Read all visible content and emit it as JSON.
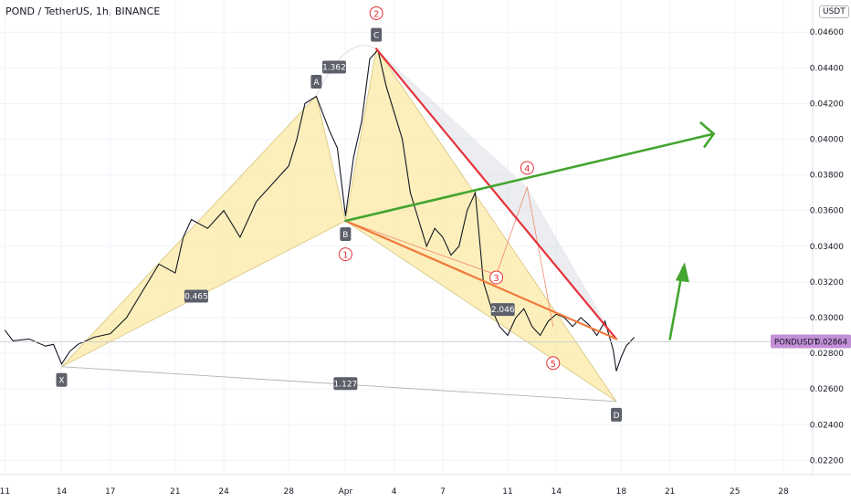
{
  "title": "POND / TetherUS, 1h, BINANCE",
  "unit": "USDT",
  "chart_data": {
    "type": "line",
    "symbol": "PONDUSDT",
    "last_price": "0.02864",
    "y_ticks": [
      "0.04600",
      "0.04400",
      "0.04200",
      "0.04000",
      "0.03800",
      "0.03600",
      "0.03400",
      "0.03200",
      "0.03000",
      "0.02800",
      "0.02600",
      "0.02400",
      "0.02200"
    ],
    "x_ticks": [
      "11",
      "14",
      "17",
      "21",
      "24",
      "28",
      "Apr",
      "4",
      "7",
      "11",
      "14",
      "18",
      "21",
      "25",
      "28"
    ],
    "ylim": [
      0.0212,
      0.0478
    ],
    "price_series": {
      "x": [
        10.5,
        11,
        12,
        13,
        13.5,
        14,
        14.5,
        15,
        16,
        17,
        18,
        19,
        20,
        21,
        21.5,
        22,
        23,
        24,
        25,
        26,
        27,
        28,
        28.5,
        29,
        29.7,
        30.5,
        31,
        31.5,
        32,
        32.5,
        33,
        33.5,
        34,
        34.5,
        35,
        35.5,
        36,
        36.5,
        37,
        37.5,
        38,
        38.5,
        39,
        39.5,
        40,
        40.5,
        41,
        41.5,
        42,
        42.5,
        43,
        43.5,
        44,
        44.5,
        45,
        45.5,
        46,
        46.5,
        47,
        47.5,
        48,
        48.2,
        48.5,
        48.8,
        49,
        49.3
      ],
      "y": [
        0.0293,
        0.0287,
        0.0288,
        0.0284,
        0.0285,
        0.0274,
        0.0281,
        0.0285,
        0.0289,
        0.0291,
        0.03,
        0.0315,
        0.033,
        0.0325,
        0.0345,
        0.0355,
        0.035,
        0.036,
        0.0345,
        0.0365,
        0.0375,
        0.0385,
        0.04,
        0.042,
        0.0424,
        0.0405,
        0.0395,
        0.0357,
        0.039,
        0.041,
        0.0445,
        0.045,
        0.043,
        0.0415,
        0.04,
        0.037,
        0.0355,
        0.034,
        0.035,
        0.0345,
        0.0335,
        0.034,
        0.036,
        0.037,
        0.032,
        0.0305,
        0.0295,
        0.029,
        0.03,
        0.0305,
        0.0295,
        0.029,
        0.0298,
        0.0302,
        0.03,
        0.0295,
        0.03,
        0.0296,
        0.029,
        0.0298,
        0.0282,
        0.027,
        0.0278,
        0.0284,
        0.0286,
        0.0289
      ]
    },
    "harmonic_points": [
      {
        "label": "X",
        "x": 14,
        "y": 0.02725
      },
      {
        "label": "A",
        "x": 29.7,
        "y": 0.04243
      },
      {
        "label": "B",
        "x": 31.5,
        "y": 0.03542
      },
      {
        "label": "C",
        "x": 33.4,
        "y": 0.04506
      },
      {
        "label": "D",
        "x": 48.2,
        "y": 0.0253
      }
    ],
    "ratios": [
      {
        "text": "0.465",
        "x": 22.3,
        "y": 0.0312
      },
      {
        "text": "1.362",
        "x": 30.8,
        "y": 0.04404
      },
      {
        "text": "2.046",
        "x": 41.2,
        "y": 0.03045
      },
      {
        "text": "1.127",
        "x": 31.5,
        "y": 0.0263
      }
    ],
    "waves": [
      {
        "label": "2",
        "x": 33.4,
        "y": 0.04706
      },
      {
        "label": "1",
        "x": 31.5,
        "y": 0.03355
      },
      {
        "label": "3",
        "x": 40.8,
        "y": 0.03225
      },
      {
        "label": "4",
        "x": 42.7,
        "y": 0.03839
      },
      {
        "label": "5",
        "x": 44.3,
        "y": 0.02745
      }
    ],
    "wave_path": {
      "x": [
        31.5,
        40.8,
        42.7,
        44.3
      ],
      "y": [
        0.03542,
        0.0324,
        0.0373,
        0.0295
      ]
    },
    "trend_lines": [
      {
        "kind": "resistance",
        "color": "#e5323b",
        "x": [
          33.4,
          48.2
        ],
        "y": [
          0.04506,
          0.0288
        ]
      },
      {
        "kind": "support",
        "color": "#f07a3a",
        "x": [
          31.5,
          48.2
        ],
        "y": [
          0.03542,
          0.0288
        ]
      },
      {
        "kind": "projection",
        "color": "#43a52f",
        "x": [
          31.5,
          54.2
        ],
        "y": [
          0.03542,
          0.0403
        ]
      },
      {
        "kind": "breakout-arrow",
        "color": "#43a52f",
        "x": [
          51.5,
          52.3
        ],
        "y": [
          0.0288,
          0.0328
        ]
      }
    ],
    "colors": {
      "pattern_fill": "#fbe9a5",
      "channel_fill": "#c8cad4",
      "price_line": "#131722",
      "symbol_badge": "#c38fd6"
    }
  }
}
